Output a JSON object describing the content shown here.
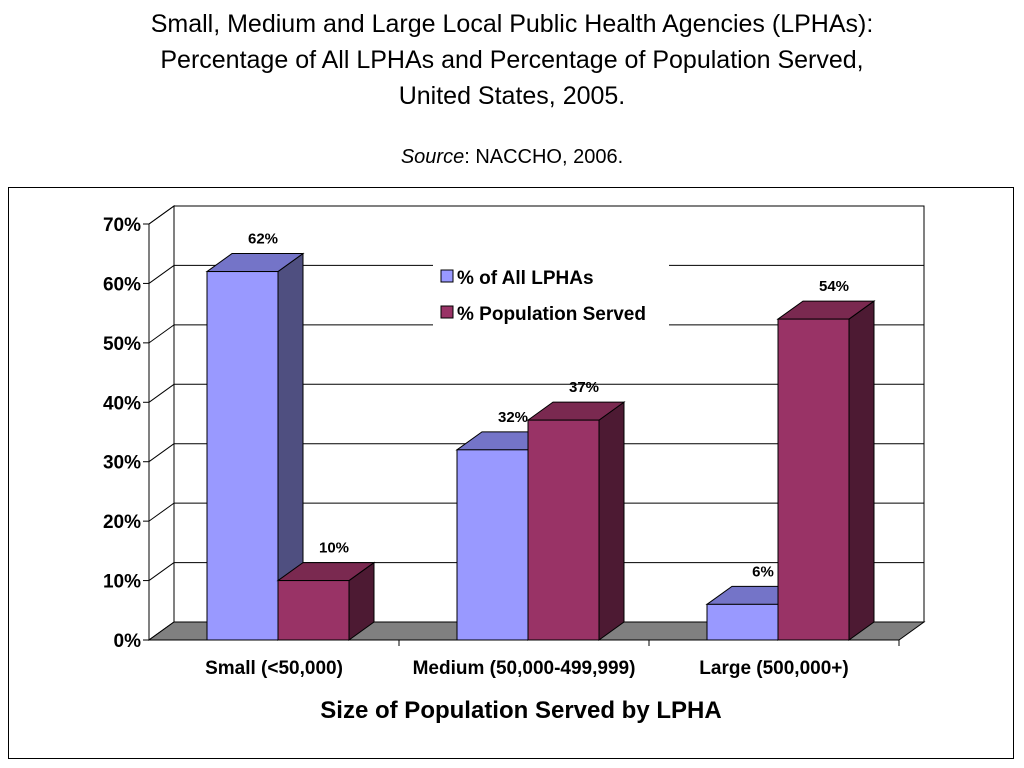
{
  "title": {
    "line1": "Small, Medium and Large Local Public Health Agencies (LPHAs):",
    "line2": "Percentage of All LPHAs and Percentage of Population Served,",
    "line3": "United States, 2005."
  },
  "source": {
    "label": "Source",
    "text": ": NACCHO, 2006."
  },
  "colors": {
    "series1_front": "#9999ff",
    "series1_side": "#4f4f80",
    "series1_top": "#7474c8",
    "series2_front": "#993366",
    "series2_side": "#4d1a33",
    "series2_top": "#7a2950",
    "floor": "#808080"
  },
  "chart_data": {
    "type": "bar",
    "style": "3d-clustered-column",
    "categories": [
      "Small (<50,000)",
      "Medium (50,000-499,999)",
      "Large (500,000+)"
    ],
    "series": [
      {
        "name": "% of All LPHAs",
        "values": [
          62,
          32,
          6
        ],
        "labels": [
          "62%",
          "32%",
          "6%"
        ]
      },
      {
        "name": "% Population Served",
        "values": [
          10,
          37,
          54
        ],
        "labels": [
          "10%",
          "37%",
          "54%"
        ]
      }
    ],
    "xlabel": "Size of Population Served by LPHA",
    "ylabel": "",
    "ylim": [
      0,
      70
    ],
    "yticks": [
      "0%",
      "10%",
      "20%",
      "30%",
      "40%",
      "50%",
      "60%",
      "70%"
    ],
    "grid": true,
    "legend_position": "top-center"
  }
}
